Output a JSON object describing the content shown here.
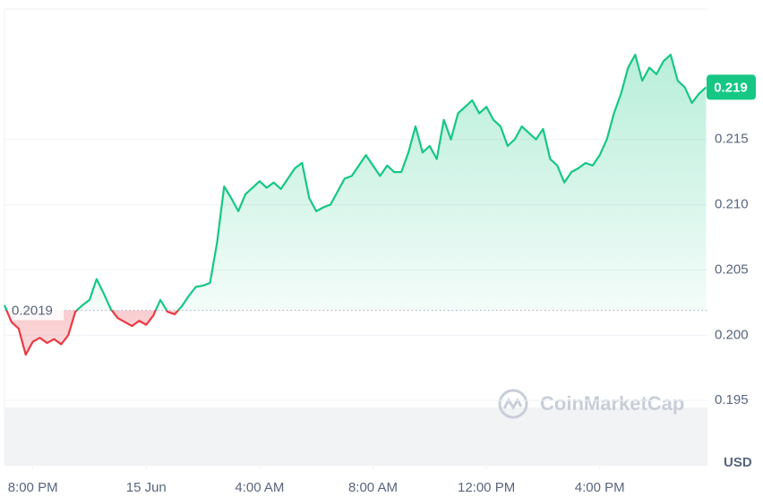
{
  "chart_data": {
    "type": "line",
    "x": [
      -5,
      -4.75,
      -4.5,
      -4.25,
      -4,
      -3.75,
      -3.5,
      -3.25,
      -3,
      -2.75,
      -2.5,
      -2.25,
      -2,
      -1.75,
      -1.5,
      -1.25,
      -1,
      -0.75,
      -0.5,
      -0.25,
      0,
      0.25,
      0.5,
      0.75,
      1,
      1.25,
      1.5,
      1.75,
      2,
      2.25,
      2.5,
      2.75,
      3,
      3.25,
      3.5,
      3.75,
      4,
      4.25,
      4.5,
      4.75,
      5,
      5.25,
      5.5,
      5.75,
      6,
      6.25,
      6.5,
      6.75,
      7,
      7.25,
      7.5,
      7.75,
      8,
      8.25,
      8.5,
      8.75,
      9,
      9.25,
      9.5,
      9.75,
      10,
      10.25,
      10.5,
      10.75,
      11,
      11.25,
      11.5,
      11.75,
      12,
      12.25,
      12.5,
      12.75,
      13,
      13.25,
      13.5,
      13.75,
      14,
      14.25,
      14.5,
      14.75,
      15,
      15.25,
      15.5,
      15.75,
      16,
      16.25,
      16.5,
      16.75,
      17,
      17.25,
      17.5,
      17.75,
      18,
      18.25,
      18.5,
      18.75,
      19,
      19.25,
      19.5,
      19.75
    ],
    "series": [
      {
        "color": "#16c784",
        "down_color": "#ea3943",
        "values": [
          0.2023,
          0.201,
          0.2005,
          0.1985,
          0.1995,
          0.1998,
          0.1994,
          0.1997,
          0.1993,
          0.2,
          0.2018,
          0.2023,
          0.2027,
          0.2043,
          0.2032,
          0.202,
          0.2013,
          0.201,
          0.2007,
          0.2011,
          0.2008,
          0.2015,
          0.2027,
          0.2018,
          0.2016,
          0.2022,
          0.203,
          0.2037,
          0.2038,
          0.204,
          0.2071,
          0.2114,
          0.2105,
          0.2095,
          0.2108,
          0.2113,
          0.2118,
          0.2113,
          0.2117,
          0.2112,
          0.212,
          0.2128,
          0.2132,
          0.2105,
          0.2095,
          0.2098,
          0.21,
          0.211,
          0.212,
          0.2122,
          0.213,
          0.2138,
          0.213,
          0.2122,
          0.213,
          0.2125,
          0.2125,
          0.214,
          0.216,
          0.214,
          0.2145,
          0.2135,
          0.2165,
          0.215,
          0.217,
          0.2175,
          0.218,
          0.217,
          0.2175,
          0.2165,
          0.216,
          0.2145,
          0.215,
          0.216,
          0.2155,
          0.215,
          0.2158,
          0.2135,
          0.213,
          0.2117,
          0.2125,
          0.2128,
          0.2132,
          0.213,
          0.2138,
          0.215,
          0.217,
          0.2185,
          0.2205,
          0.2215,
          0.2195,
          0.2205,
          0.22,
          0.221,
          0.2215,
          0.2195,
          0.219,
          0.2178,
          0.2185,
          0.219
        ]
      }
    ],
    "baseline": 0.2019,
    "last_price": 0.219,
    "xlim": [
      -5,
      19.8
    ],
    "xticks": [
      {
        "value": -4,
        "label": "8:00 PM"
      },
      {
        "value": 0,
        "label": "15 Jun"
      },
      {
        "value": 4,
        "label": "4:00 AM"
      },
      {
        "value": 8,
        "label": "8:00 AM"
      },
      {
        "value": 12,
        "label": "12:00 PM"
      },
      {
        "value": 16,
        "label": "4:00 PM"
      }
    ],
    "ylim": [
      0.19,
      0.225
    ],
    "yticks": [
      0.195,
      {
        "value": 0.2,
        "label": "0.200"
      },
      0.205,
      {
        "value": 0.21,
        "label": "0.210"
      },
      0.215
    ],
    "currency": "USD",
    "watermark": "CoinMarketCap",
    "grid": true
  }
}
